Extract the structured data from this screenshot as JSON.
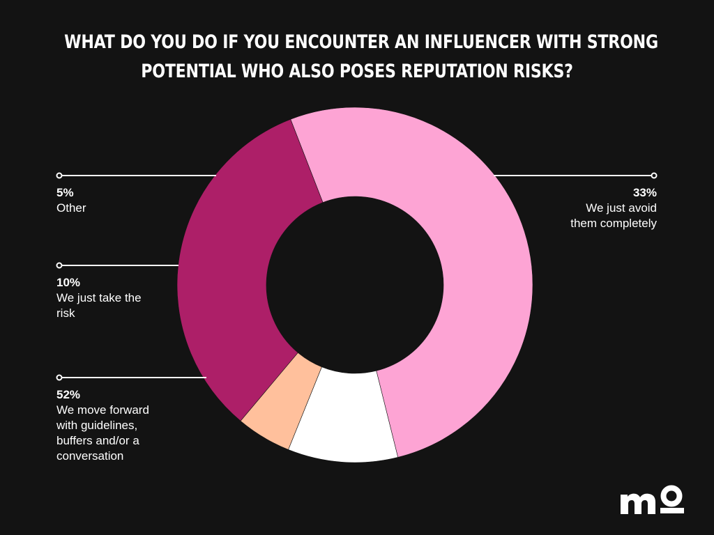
{
  "title_lines": [
    "WHAT DO YOU DO IF YOU ENCOUNTER AN INFLUENCER WITH STRONG",
    "POTENTIAL WHO ALSO POSES REPUTATION RISKS?"
  ],
  "brand": {
    "logo_text": "mo"
  },
  "colors": {
    "background": "#131313",
    "avoid": "#ad1f68",
    "forward": "#fda4d4",
    "take_risk": "#ffffff",
    "other": "#ffc09c"
  },
  "chart_data": {
    "type": "pie",
    "title": "WHAT DO YOU DO IF YOU ENCOUNTER AN INFLUENCER WITH STRONG POTENTIAL WHO ALSO POSES REPUTATION RISKS?",
    "donut": true,
    "slices": [
      {
        "pct_label": "33%",
        "value": 33,
        "name": "We just avoid them completely",
        "lines": [
          "We just avoid",
          "them completely"
        ],
        "color": "#ad1f68"
      },
      {
        "pct_label": "52%",
        "value": 52,
        "name": "We move forward with guidelines, buffers and/or a conversation",
        "lines": [
          "We move forward",
          "with guidelines,",
          "buffers and/or a",
          "conversation"
        ],
        "color": "#fda4d4"
      },
      {
        "pct_label": "10%",
        "value": 10,
        "name": "We just take the risk",
        "lines": [
          "We just take the",
          "risk"
        ],
        "color": "#ffffff"
      },
      {
        "pct_label": "5%",
        "value": 5,
        "name": "Other",
        "lines": [
          "Other"
        ],
        "color": "#ffc09c"
      }
    ]
  }
}
